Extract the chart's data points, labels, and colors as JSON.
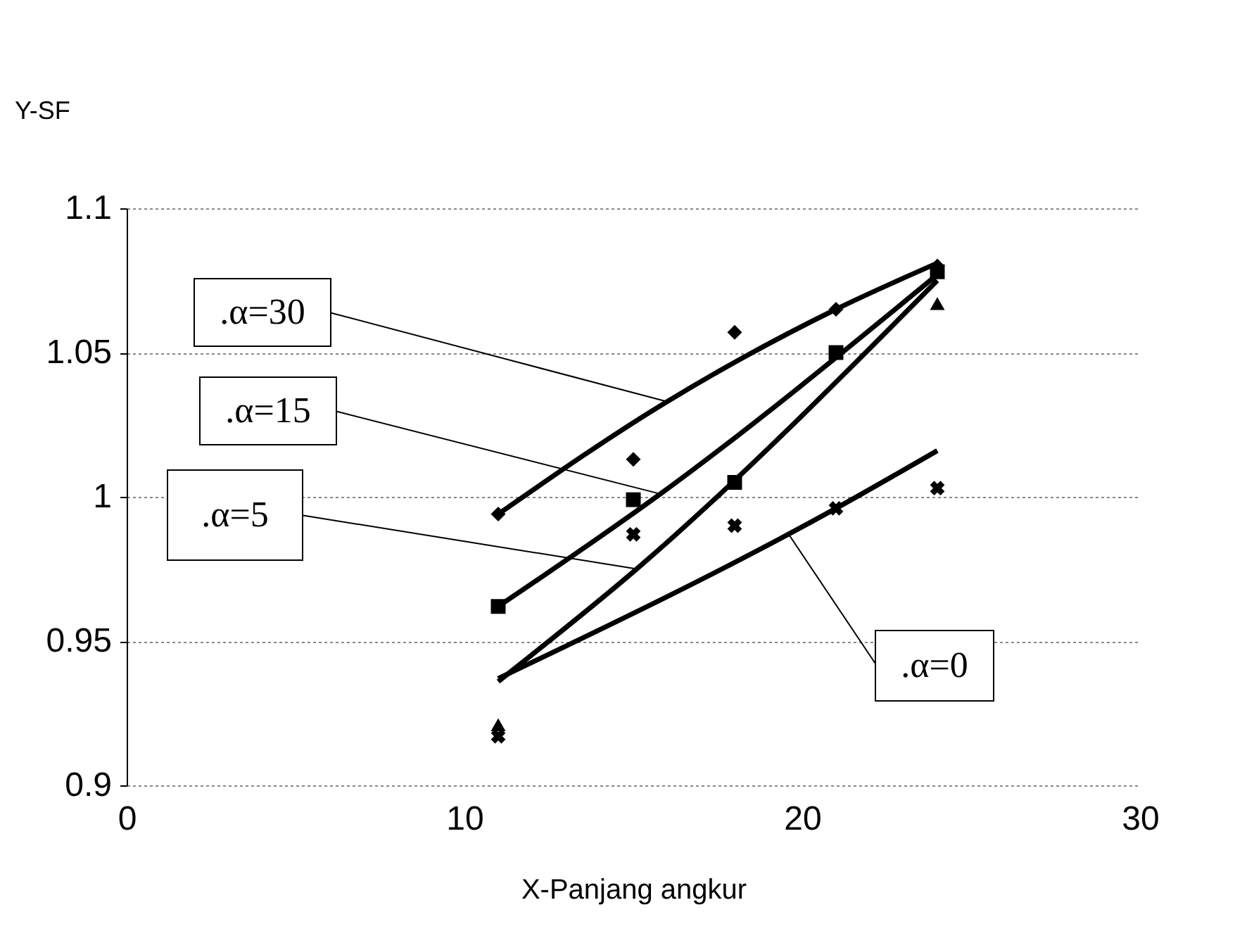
{
  "chart_data": {
    "type": "scatter",
    "xlabel": "X-Panjang angkur",
    "ylabel": "Y-SF",
    "xlim": [
      0,
      30
    ],
    "xticks": [
      0,
      10,
      20,
      30
    ],
    "ylim": [
      0.9,
      1.1
    ],
    "yticks": [
      0.9,
      0.95,
      1,
      1.05,
      1.1
    ],
    "grid": "y",
    "annotations": [
      {
        "text": ".α=30",
        "x": 16,
        "y": 1.033
      },
      {
        "text": ".α=15",
        "x": 15.8,
        "y": 1.001
      },
      {
        "text": ".α=5",
        "x": 15.1,
        "y": 0.975
      },
      {
        "text": ".α=0",
        "x": 19.6,
        "y": 0.987
      }
    ],
    "series": [
      {
        "marker": "diamond",
        "color": "#000000",
        "x": [
          11,
          15,
          18,
          21,
          24
        ],
        "values": [
          0.994,
          1.013,
          1.057,
          1.065,
          1.08
        ]
      },
      {
        "marker": "square",
        "color": "#000000",
        "x": [
          11,
          15,
          18,
          21,
          24
        ],
        "values": [
          0.962,
          0.999,
          1.005,
          1.05,
          1.078
        ]
      },
      {
        "marker": "triangle",
        "color": "#000000",
        "x": [
          11,
          15,
          18,
          21,
          24
        ],
        "values": [
          0.921,
          null,
          null,
          null,
          1.067
        ]
      },
      {
        "marker": "cross",
        "color": "#000000",
        "x": [
          11,
          15,
          18,
          21,
          24
        ],
        "values": [
          0.917,
          0.987,
          0.99,
          0.996,
          1.003
        ]
      },
      {
        "type": "line",
        "color": "#000000",
        "x": [
          11,
          16,
          21,
          24
        ],
        "values": [
          0.994,
          1.033,
          1.065,
          1.081
        ]
      },
      {
        "type": "line",
        "color": "#000000",
        "x": [
          11,
          15.8,
          24
        ],
        "values": [
          0.962,
          1.001,
          1.077
        ]
      },
      {
        "type": "line",
        "color": "#000000",
        "x": [
          11,
          15.1,
          24
        ],
        "values": [
          0.936,
          0.975,
          1.075
        ]
      },
      {
        "type": "line",
        "color": "#000000",
        "x": [
          11,
          21,
          24
        ],
        "values": [
          0.937,
          0.996,
          1.016
        ]
      }
    ]
  }
}
